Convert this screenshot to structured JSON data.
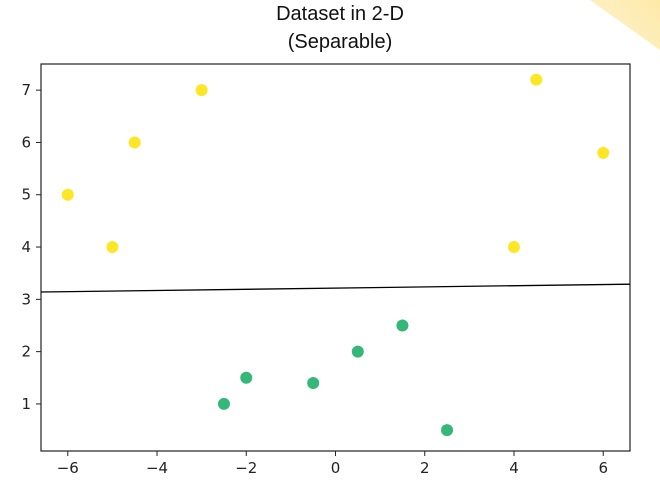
{
  "chart_data": {
    "type": "scatter",
    "title": "Dataset in 2-D",
    "subtitle": "(Separable)",
    "xlabel": "",
    "ylabel": "",
    "xlim": [
      -6.6,
      6.6
    ],
    "ylim": [
      0.1,
      7.5
    ],
    "xticks": [
      -6,
      -4,
      -2,
      0,
      2,
      4,
      6
    ],
    "xtick_labels": [
      "−6",
      "−4",
      "−2",
      "0",
      "2",
      "4",
      "6"
    ],
    "yticks": [
      1,
      2,
      3,
      4,
      5,
      6,
      7
    ],
    "ytick_labels": [
      "1",
      "2",
      "3",
      "4",
      "5",
      "6",
      "7"
    ],
    "grid": false,
    "series": [
      {
        "color": "#fde725",
        "points": [
          {
            "x": -6,
            "y": 5
          },
          {
            "x": -5,
            "y": 4
          },
          {
            "x": -4.5,
            "y": 6
          },
          {
            "x": -3,
            "y": 7
          },
          {
            "x": 4,
            "y": 4
          },
          {
            "x": 4.5,
            "y": 7.2
          },
          {
            "x": 6,
            "y": 5.8
          }
        ]
      },
      {
        "color": "#35b779",
        "points": [
          {
            "x": -2.5,
            "y": 1
          },
          {
            "x": -2,
            "y": 1.5
          },
          {
            "x": -0.5,
            "y": 1.4
          },
          {
            "x": 0.5,
            "y": 2
          },
          {
            "x": 1.5,
            "y": 2.5
          },
          {
            "x": 2.5,
            "y": 0.5
          }
        ]
      }
    ],
    "decision_boundary": {
      "color": "#000000",
      "points": [
        {
          "x": -6.6,
          "y": 3.14
        },
        {
          "x": 6.6,
          "y": 3.29
        }
      ]
    }
  }
}
